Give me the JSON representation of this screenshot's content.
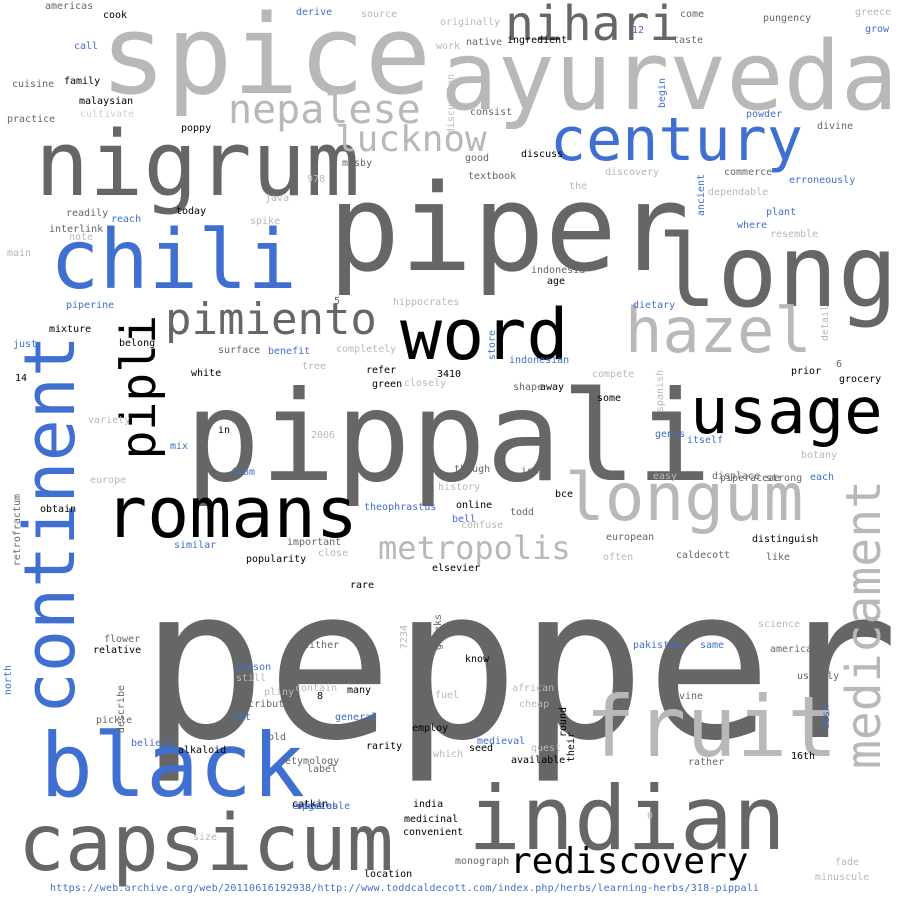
{
  "words": [
    {
      "text": "pepper",
      "color": "dark"
    },
    {
      "text": "pippali",
      "color": "dark"
    },
    {
      "text": "piper",
      "color": "dark"
    },
    {
      "text": "long",
      "color": "dark"
    },
    {
      "text": "spice",
      "color": "light"
    },
    {
      "text": "ayurveda",
      "color": "light"
    },
    {
      "text": "nigrum",
      "color": "dark"
    },
    {
      "text": "chili",
      "color": "blue"
    },
    {
      "text": "indian",
      "color": "dark"
    },
    {
      "text": "black",
      "color": "blue"
    },
    {
      "text": "capsicum",
      "color": "dark"
    },
    {
      "text": "fruit",
      "color": "light"
    },
    {
      "text": "continent",
      "color": "blue"
    },
    {
      "text": "word",
      "color": "black"
    },
    {
      "text": "usage",
      "color": "black"
    },
    {
      "text": "romans",
      "color": "black"
    },
    {
      "text": "longum",
      "color": "light"
    },
    {
      "text": "medicament",
      "color": "light"
    },
    {
      "text": "century",
      "color": "blue"
    },
    {
      "text": "nihari",
      "color": "dark"
    },
    {
      "text": "hazel",
      "color": "light"
    },
    {
      "text": "pipli",
      "color": "black"
    },
    {
      "text": "pimiento",
      "color": "dark"
    },
    {
      "text": "nepalese",
      "color": "light"
    },
    {
      "text": "lucknow",
      "color": "light"
    },
    {
      "text": "metropolis",
      "color": "light"
    },
    {
      "text": "rediscovery",
      "color": "black"
    },
    {
      "text": "americas",
      "color": "dark"
    },
    {
      "text": "cook",
      "color": "black"
    },
    {
      "text": "derive",
      "color": "blue"
    },
    {
      "text": "source",
      "color": "light"
    },
    {
      "text": "originally",
      "color": "light"
    },
    {
      "text": "come",
      "color": "dark"
    },
    {
      "text": "pungency",
      "color": "dark"
    },
    {
      "text": "greece",
      "color": "light"
    },
    {
      "text": "grow",
      "color": "blue"
    },
    {
      "text": "call",
      "color": "blue"
    },
    {
      "text": "work",
      "color": "light"
    },
    {
      "text": "native",
      "color": "dark"
    },
    {
      "text": "ingredient",
      "color": "black"
    },
    {
      "text": "12",
      "color": "blue"
    },
    {
      "text": "taste",
      "color": "dark"
    },
    {
      "text": "cuisine",
      "color": "dark"
    },
    {
      "text": "family",
      "color": "black"
    },
    {
      "text": "malaysian",
      "color": "black"
    },
    {
      "text": "cultivate",
      "color": "faint"
    },
    {
      "text": "practice",
      "color": "dark"
    },
    {
      "text": "discussion",
      "color": "light"
    },
    {
      "text": "consist",
      "color": "dark"
    },
    {
      "text": "begin",
      "color": "blue"
    },
    {
      "text": "powder",
      "color": "blue"
    },
    {
      "text": "divine",
      "color": "dark"
    },
    {
      "text": "poppy",
      "color": "black"
    },
    {
      "text": "good",
      "color": "dark"
    },
    {
      "text": "discuss",
      "color": "black"
    },
    {
      "text": "mosby",
      "color": "dark"
    },
    {
      "text": "textbook",
      "color": "dark"
    },
    {
      "text": "discovery",
      "color": "light"
    },
    {
      "text": "commerce",
      "color": "dark"
    },
    {
      "text": "978",
      "color": "light"
    },
    {
      "text": "the",
      "color": "light"
    },
    {
      "text": "erroneously",
      "color": "blue"
    },
    {
      "text": "java",
      "color": "light"
    },
    {
      "text": "ancient",
      "color": "blue"
    },
    {
      "text": "dependable",
      "color": "light"
    },
    {
      "text": "readily",
      "color": "dark"
    },
    {
      "text": "today",
      "color": "black"
    },
    {
      "text": "reach",
      "color": "blue"
    },
    {
      "text": "spike",
      "color": "light"
    },
    {
      "text": "plant",
      "color": "blue"
    },
    {
      "text": "where",
      "color": "blue"
    },
    {
      "text": "interlink",
      "color": "dark"
    },
    {
      "text": "note",
      "color": "light"
    },
    {
      "text": "resemble",
      "color": "light"
    },
    {
      "text": "main",
      "color": "light"
    },
    {
      "text": "indonesia",
      "color": "dark"
    },
    {
      "text": "age",
      "color": "black"
    },
    {
      "text": "5",
      "color": "dark"
    },
    {
      "text": "hippocrates",
      "color": "light"
    },
    {
      "text": "piperine",
      "color": "blue"
    },
    {
      "text": "dietary",
      "color": "blue"
    },
    {
      "text": "detail",
      "color": "light"
    },
    {
      "text": "mixture",
      "color": "black"
    },
    {
      "text": "belong",
      "color": "black"
    },
    {
      "text": "just",
      "color": "blue"
    },
    {
      "text": "surface",
      "color": "dark"
    },
    {
      "text": "benefit",
      "color": "blue"
    },
    {
      "text": "completely",
      "color": "light"
    },
    {
      "text": "store",
      "color": "blue"
    },
    {
      "text": "indonesian",
      "color": "blue"
    },
    {
      "text": "6",
      "color": "dark"
    },
    {
      "text": "prior",
      "color": "black"
    },
    {
      "text": "grocery",
      "color": "black"
    },
    {
      "text": "14",
      "color": "black"
    },
    {
      "text": "white",
      "color": "black"
    },
    {
      "text": "tree",
      "color": "light"
    },
    {
      "text": "refer",
      "color": "black"
    },
    {
      "text": "green",
      "color": "black"
    },
    {
      "text": "closely",
      "color": "light"
    },
    {
      "text": "3410",
      "color": "black"
    },
    {
      "text": "shape",
      "color": "dark"
    },
    {
      "text": "away",
      "color": "black"
    },
    {
      "text": "compete",
      "color": "light"
    },
    {
      "text": "spanish",
      "color": "light"
    },
    {
      "text": "some",
      "color": "black"
    },
    {
      "text": "variety",
      "color": "light"
    },
    {
      "text": "in",
      "color": "black"
    },
    {
      "text": "2006",
      "color": "light"
    },
    {
      "text": "genus",
      "color": "blue"
    },
    {
      "text": "itself",
      "color": "blue"
    },
    {
      "text": "mix",
      "color": "blue"
    },
    {
      "text": "botany",
      "color": "light"
    },
    {
      "text": "from",
      "color": "blue"
    },
    {
      "text": "though",
      "color": "dark"
    },
    {
      "text": "isbn",
      "color": "dark"
    },
    {
      "text": "easy",
      "color": "light"
    },
    {
      "text": "piperaceae",
      "color": "dark"
    },
    {
      "text": "europe",
      "color": "light"
    },
    {
      "text": "history",
      "color": "light"
    },
    {
      "text": "displace",
      "color": "dark"
    },
    {
      "text": "strong",
      "color": "dark"
    },
    {
      "text": "each",
      "color": "blue"
    },
    {
      "text": "online",
      "color": "black"
    },
    {
      "text": "bce",
      "color": "black"
    },
    {
      "text": "obtain",
      "color": "black"
    },
    {
      "text": "theophrastus",
      "color": "blue"
    },
    {
      "text": "bell",
      "color": "blue"
    },
    {
      "text": "todd",
      "color": "dark"
    },
    {
      "text": "confuse",
      "color": "light"
    },
    {
      "text": "retrofractum",
      "color": "dark"
    },
    {
      "text": "important",
      "color": "dark"
    },
    {
      "text": "european",
      "color": "dark"
    },
    {
      "text": "distinguish",
      "color": "black"
    },
    {
      "text": "similar",
      "color": "blue"
    },
    {
      "text": "close",
      "color": "light"
    },
    {
      "text": "caldecott",
      "color": "dark"
    },
    {
      "text": "popularity",
      "color": "black"
    },
    {
      "text": "often",
      "color": "light"
    },
    {
      "text": "like",
      "color": "dark"
    },
    {
      "text": "elsevier",
      "color": "black"
    },
    {
      "text": "rare",
      "color": "black"
    },
    {
      "text": "greeks",
      "color": "dark"
    },
    {
      "text": "7234",
      "color": "light"
    },
    {
      "text": "science",
      "color": "light"
    },
    {
      "text": "flower",
      "color": "dark"
    },
    {
      "text": "relative",
      "color": "black"
    },
    {
      "text": "either",
      "color": "dark"
    },
    {
      "text": "pakistan",
      "color": "blue"
    },
    {
      "text": "same",
      "color": "blue"
    },
    {
      "text": "american",
      "color": "dark"
    },
    {
      "text": "north",
      "color": "blue"
    },
    {
      "text": "season",
      "color": "blue"
    },
    {
      "text": "still",
      "color": "light"
    },
    {
      "text": "dry",
      "color": "dark"
    },
    {
      "text": "know",
      "color": "black"
    },
    {
      "text": "usually",
      "color": "dark"
    },
    {
      "text": "pliny",
      "color": "light"
    },
    {
      "text": "contain",
      "color": "light"
    },
    {
      "text": "many",
      "color": "black"
    },
    {
      "text": "african",
      "color": "light"
    },
    {
      "text": "8",
      "color": "black"
    },
    {
      "text": "fuel",
      "color": "light"
    },
    {
      "text": "vine",
      "color": "dark"
    },
    {
      "text": "cheap",
      "color": "light"
    },
    {
      "text": "dish",
      "color": "blue"
    },
    {
      "text": "contribute",
      "color": "dark"
    },
    {
      "text": "pickle",
      "color": "dark"
    },
    {
      "text": "describe",
      "color": "dark"
    },
    {
      "text": "hot",
      "color": "blue"
    },
    {
      "text": "general",
      "color": "blue"
    },
    {
      "text": "employ",
      "color": "black"
    },
    {
      "text": "round",
      "color": "black"
    },
    {
      "text": "old",
      "color": "dark"
    },
    {
      "text": "believe",
      "color": "blue"
    },
    {
      "text": "medieval",
      "color": "blue"
    },
    {
      "text": "quest",
      "color": "light"
    },
    {
      "text": "alkaloid",
      "color": "black"
    },
    {
      "text": "etymology",
      "color": "dark"
    },
    {
      "text": "rarity",
      "color": "black"
    },
    {
      "text": "seed",
      "color": "black"
    },
    {
      "text": "which",
      "color": "light"
    },
    {
      "text": "available",
      "color": "black"
    },
    {
      "text": "their",
      "color": "black"
    },
    {
      "text": "rather",
      "color": "dark"
    },
    {
      "text": "16th",
      "color": "black"
    },
    {
      "text": "label",
      "color": "dark"
    },
    {
      "text": "embed",
      "color": "blue"
    },
    {
      "text": "species",
      "color": "dark"
    },
    {
      "text": "catkin",
      "color": "black"
    },
    {
      "text": "vegetable",
      "color": "blue"
    },
    {
      "text": "india",
      "color": "black"
    },
    {
      "text": "medicinal",
      "color": "black"
    },
    {
      "text": "convenient",
      "color": "black"
    },
    {
      "text": "size",
      "color": "light"
    },
    {
      "text": "0",
      "color": "light"
    },
    {
      "text": "monograph",
      "color": "dark"
    },
    {
      "text": "location",
      "color": "black"
    },
    {
      "text": "fade",
      "color": "light"
    },
    {
      "text": "minuscule",
      "color": "light"
    }
  ],
  "source_url": "https://web.archive.org/web/20110616192938/http://www.toddcaldecott.com/index.php/herbs/learning-herbs/318-pippali"
}
